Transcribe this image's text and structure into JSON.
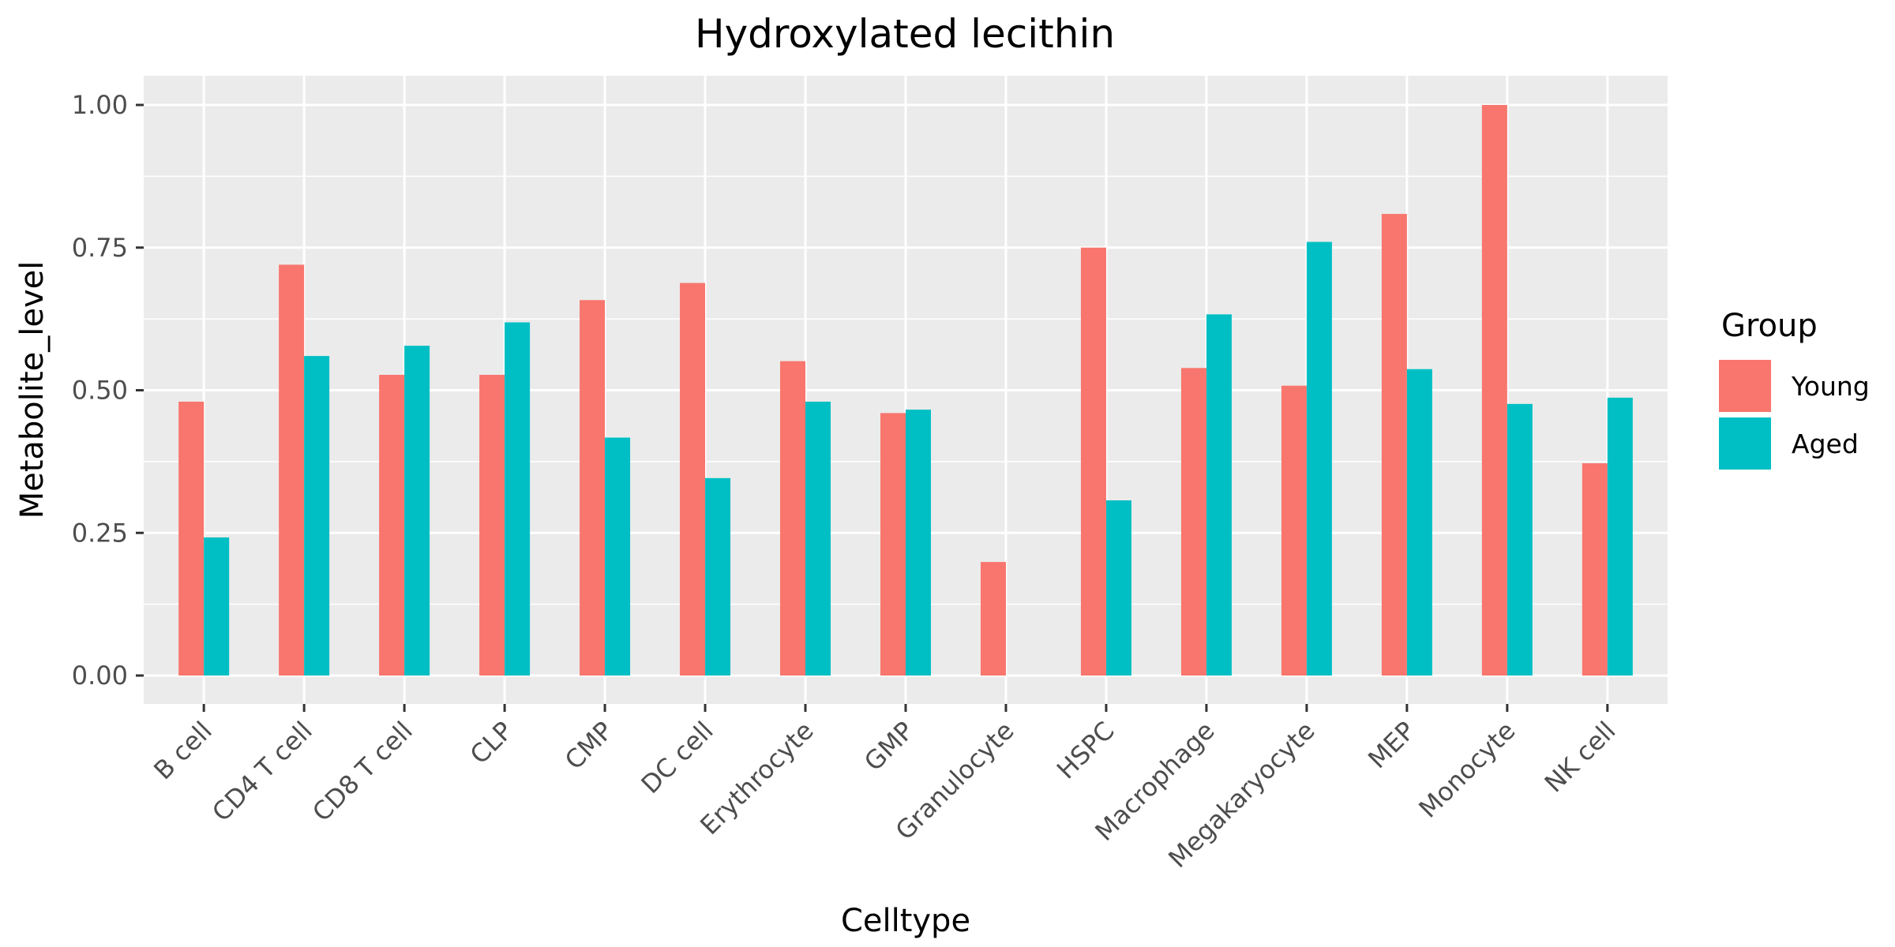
{
  "chart_data": {
    "type": "bar",
    "title": "Hydroxylated lecithin",
    "xlabel": "Celltype",
    "ylabel": "Metabolite_level",
    "ylim": [
      0,
      1.04
    ],
    "yticks": [
      "0.00",
      "0.25",
      "0.50",
      "0.75",
      "1.00"
    ],
    "grid": true,
    "legend_position": "right",
    "legend_title": "Group",
    "categories": [
      "B cell",
      "CD4 T cell",
      "CD8 T cell",
      "CLP",
      "CMP",
      "DC cell",
      "Erythrocyte",
      "GMP",
      "Granulocyte",
      "HSPC",
      "Macrophage",
      "Megakaryocyte",
      "MEP",
      "Monocyte",
      "NK cell"
    ],
    "series": [
      {
        "name": "Young",
        "color": "#F8766D",
        "values": [
          0.48,
          0.72,
          0.527,
          0.527,
          0.658,
          0.688,
          0.551,
          0.46,
          0.199,
          0.75,
          0.539,
          0.508,
          0.809,
          1.0,
          0.372
        ]
      },
      {
        "name": "Aged",
        "color": "#00BFC4",
        "values": [
          0.242,
          0.56,
          0.578,
          0.619,
          0.417,
          0.346,
          0.48,
          0.466,
          null,
          0.307,
          0.633,
          0.76,
          0.537,
          0.476,
          0.487
        ]
      }
    ],
    "colors": {
      "panel_bg": "#EBEBEB",
      "grid": "#FFFFFF",
      "tick": "#333333"
    }
  }
}
